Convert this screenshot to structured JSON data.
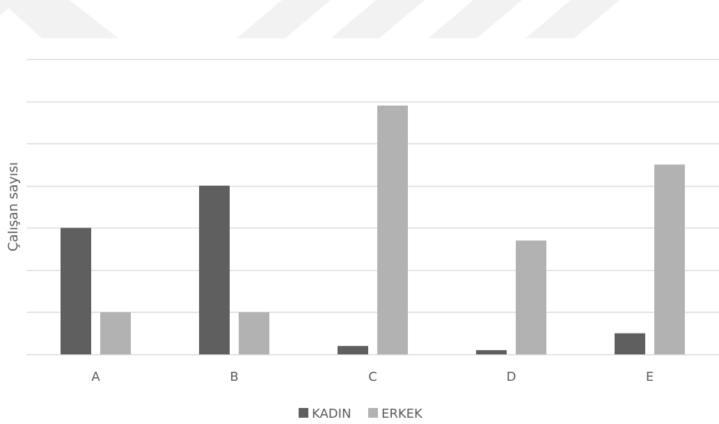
{
  "chart_data": {
    "type": "bar",
    "title": "",
    "xlabel": "",
    "ylabel": "Çalışan sayısı",
    "categories": [
      "A",
      "B",
      "C",
      "D",
      "E"
    ],
    "series": [
      {
        "name": "KADIN",
        "values": [
          3.0,
          4.0,
          0.2,
          0.1,
          0.5
        ]
      },
      {
        "name": "ERKEK",
        "values": [
          1.0,
          1.0,
          5.9,
          2.7,
          4.5
        ]
      }
    ],
    "ylim": [
      0,
      7
    ],
    "y_gridlines": [
      0,
      1,
      2,
      3,
      4,
      5,
      6,
      7
    ],
    "y_tick_labels_visible": false,
    "grid": true,
    "legend_position": "bottom",
    "colors": {
      "KADIN": "#5f5f5f",
      "ERKEK": "#b2b2b2",
      "grid": "#d9d9d9",
      "text": "#595959",
      "watermark": "#f2f2f2"
    }
  }
}
